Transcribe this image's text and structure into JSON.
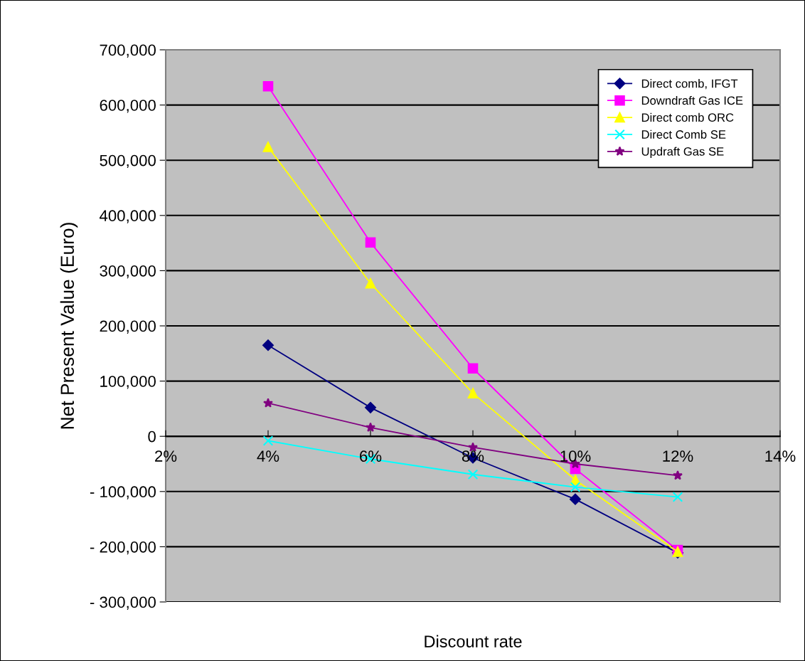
{
  "chart_data": {
    "type": "line",
    "xlabel": "Discount rate",
    "ylabel": "Net Present Value (Euro)",
    "x": [
      0.04,
      0.06,
      0.08,
      0.1,
      0.12
    ],
    "series": [
      {
        "name": "Direct comb, IFGT",
        "color": "#000080",
        "marker": "diamond",
        "values": [
          165000,
          52000,
          -39000,
          -114000,
          -211000
        ]
      },
      {
        "name": "Downdraft Gas ICE",
        "color": "#ff00ff",
        "marker": "square",
        "values": [
          634000,
          351000,
          123000,
          -59000,
          -206000
        ]
      },
      {
        "name": "Direct comb ORC",
        "color": "#ffff00",
        "marker": "triangle",
        "values": [
          524000,
          277000,
          78000,
          -79000,
          -209000
        ]
      },
      {
        "name": "Direct Comb SE",
        "color": "#00ffff",
        "marker": "cross",
        "values": [
          -8000,
          -41000,
          -69000,
          -92000,
          -110000
        ]
      },
      {
        "name": "Updraft Gas SE",
        "color": "#800080",
        "marker": "star",
        "values": [
          60000,
          16000,
          -20000,
          -50000,
          -71000
        ]
      }
    ],
    "xlim": [
      0.02,
      0.14
    ],
    "xticks": [
      {
        "value": 0.02,
        "label": "2%"
      },
      {
        "value": 0.04,
        "label": "4%"
      },
      {
        "value": 0.06,
        "label": "6%"
      },
      {
        "value": 0.08,
        "label": "8%"
      },
      {
        "value": 0.1,
        "label": "10%"
      },
      {
        "value": 0.12,
        "label": "12%"
      },
      {
        "value": 0.14,
        "label": "14%"
      }
    ],
    "ylim": [
      -300000,
      700000
    ],
    "yticks": [
      {
        "value": -300000,
        "label": "- 300,000"
      },
      {
        "value": -200000,
        "label": "- 200,000"
      },
      {
        "value": -100000,
        "label": "- 100,000"
      },
      {
        "value": 0,
        "label": "0"
      },
      {
        "value": 100000,
        "label": "100,000"
      },
      {
        "value": 200000,
        "label": "200,000"
      },
      {
        "value": 300000,
        "label": "300,000"
      },
      {
        "value": 400000,
        "label": "400,000"
      },
      {
        "value": 500000,
        "label": "500,000"
      },
      {
        "value": 600000,
        "label": "600,000"
      },
      {
        "value": 700000,
        "label": "700,000"
      }
    ],
    "grid": "y",
    "legend": "top right",
    "line_style": "solid"
  }
}
